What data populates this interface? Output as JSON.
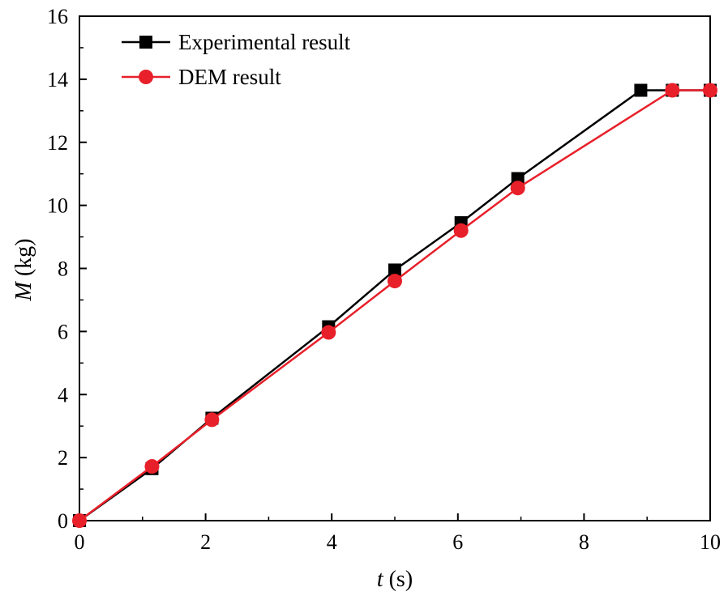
{
  "chart_data": {
    "type": "line",
    "title": "",
    "xlabel": {
      "symbol": "t",
      "unit": " (s)"
    },
    "ylabel": {
      "symbol": "M",
      "unit": " (kg)"
    },
    "xlim": [
      0,
      10
    ],
    "ylim": [
      0,
      16
    ],
    "xticks": [
      0,
      2,
      4,
      6,
      8,
      10
    ],
    "yticks": [
      0,
      2,
      4,
      6,
      8,
      10,
      12,
      14,
      16
    ],
    "legend_position": "top-left",
    "grid": false,
    "series": [
      {
        "name": "Experimental result",
        "color": "#000000",
        "marker": "square",
        "x": [
          0,
          1.15,
          2.1,
          3.95,
          5.0,
          6.05,
          6.95,
          8.9,
          9.4,
          10
        ],
        "y": [
          0,
          1.65,
          3.25,
          6.15,
          7.95,
          9.45,
          10.85,
          13.65,
          13.65,
          13.65
        ]
      },
      {
        "name": "DEM result",
        "color": "#e8202a",
        "marker": "circle",
        "x": [
          0,
          1.15,
          2.1,
          3.95,
          5.0,
          6.05,
          6.95,
          9.4,
          10
        ],
        "y": [
          0,
          1.72,
          3.2,
          5.97,
          7.6,
          9.2,
          10.55,
          13.65,
          13.65
        ]
      }
    ]
  }
}
